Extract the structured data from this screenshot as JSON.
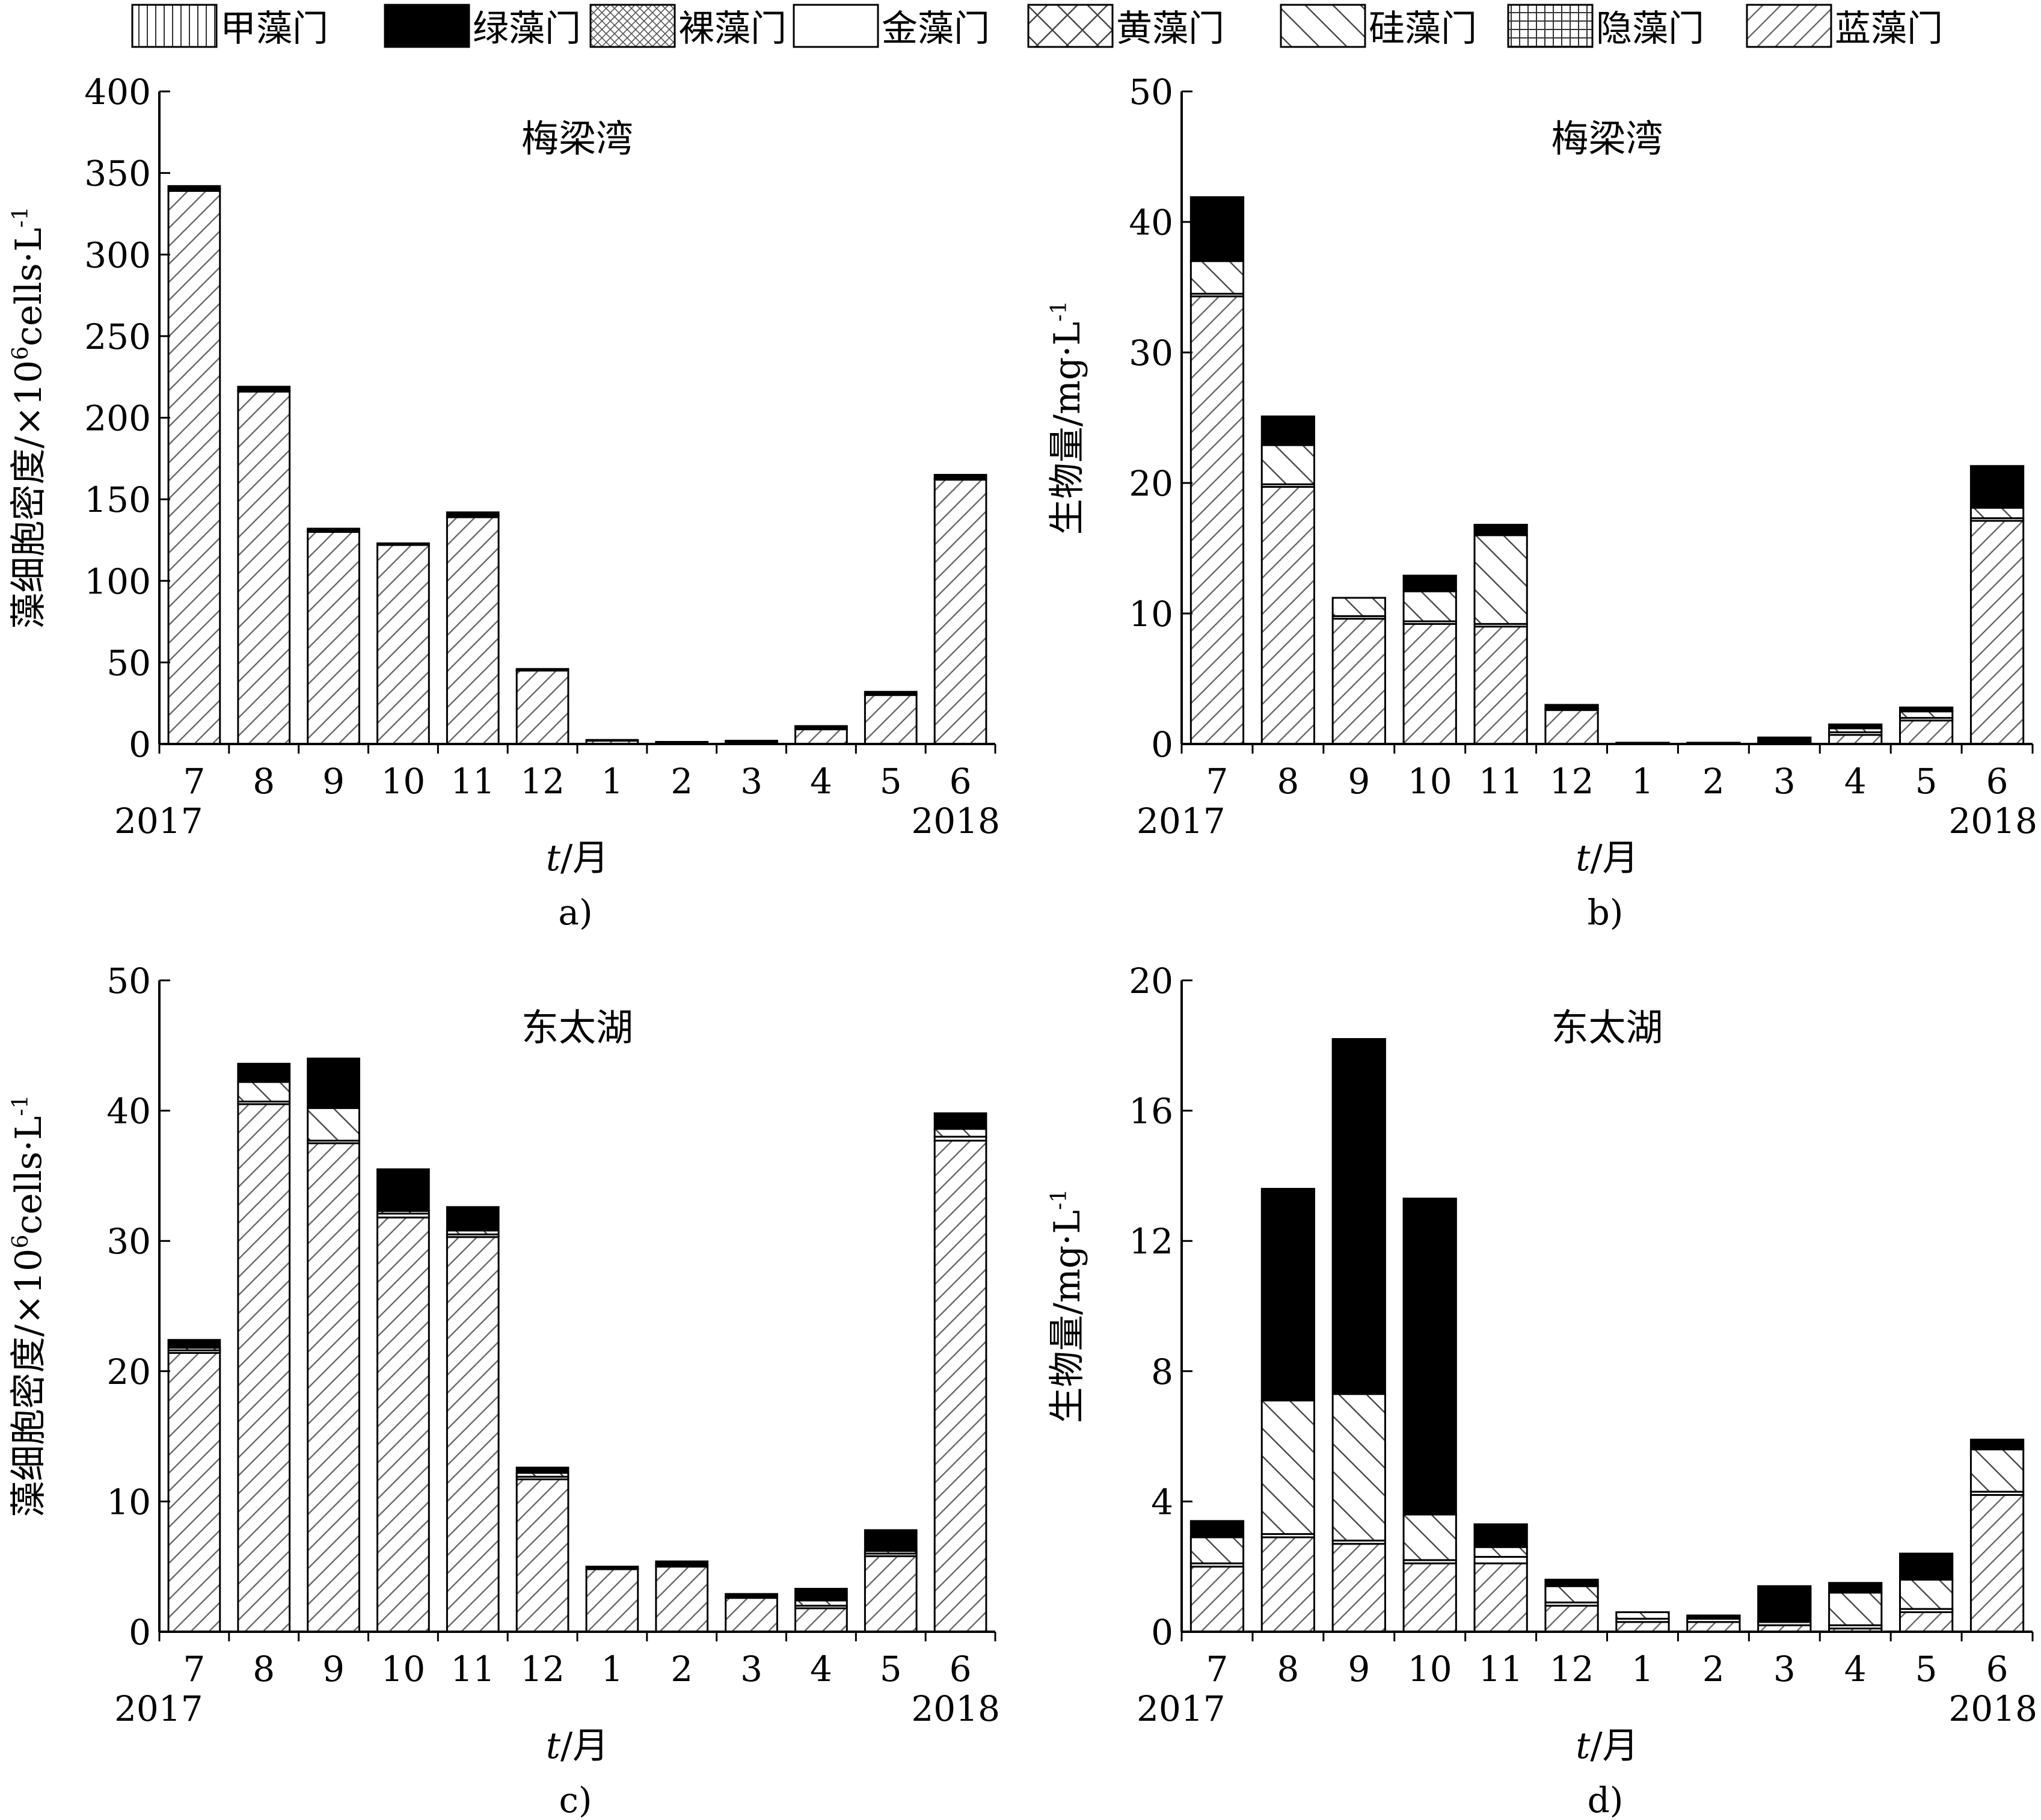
{
  "legend": [
    {
      "label": "甲藻门",
      "pattern": "vertical"
    },
    {
      "label": "绿藻门",
      "pattern": "solid"
    },
    {
      "label": "裸藻门",
      "pattern": "crosshatch"
    },
    {
      "label": "金藻门",
      "pattern": "blank"
    },
    {
      "label": "黄藻门",
      "pattern": "bigx"
    },
    {
      "label": "硅藻门",
      "pattern": "backslash"
    },
    {
      "label": "隐藻门",
      "pattern": "grid"
    },
    {
      "label": "蓝藻门",
      "pattern": "forwardslash"
    }
  ],
  "chart_data": [
    {
      "type": "bar",
      "stacked": true,
      "panel_label": "a)",
      "title": "梅梁湾",
      "ylabel_main": "藻细胞密度/×10",
      "ylabel_sup1": "6",
      "ylabel_mid": "cells·L",
      "ylabel_sup2": "-1",
      "xlabel_main": "t",
      "xlabel_unit": "/月",
      "categories": [
        "7",
        "8",
        "9",
        "10",
        "11",
        "12",
        "1",
        "2",
        "3",
        "4",
        "5",
        "6"
      ],
      "year_start": "2017",
      "year_end": "2018",
      "ylim": [
        0,
        400
      ],
      "yticks": [
        0,
        50,
        100,
        150,
        200,
        250,
        300,
        350,
        400
      ],
      "series": [
        {
          "name": "蓝藻门",
          "values": [
            339,
            216,
            130,
            122,
            139,
            45,
            2,
            1,
            1,
            9,
            30,
            162
          ]
        },
        {
          "name": "硅藻门",
          "values": [
            0,
            0,
            0,
            0,
            0,
            0,
            0,
            0,
            0,
            0,
            0,
            0
          ]
        },
        {
          "name": "金藻门",
          "values": [
            1,
            1,
            1,
            1,
            1,
            1,
            0.5,
            0.3,
            0.5,
            1,
            1,
            1
          ]
        },
        {
          "name": "绿藻门",
          "values": [
            2,
            2,
            1,
            0,
            2,
            0,
            0,
            0,
            0.5,
            1,
            1,
            2
          ]
        }
      ]
    },
    {
      "type": "bar",
      "stacked": true,
      "panel_label": "b)",
      "title": "梅梁湾",
      "ylabel_main": "生物量/mg·L",
      "ylabel_sup2": "-1",
      "xlabel_main": "t",
      "xlabel_unit": "/月",
      "categories": [
        "7",
        "8",
        "9",
        "10",
        "11",
        "12",
        "1",
        "2",
        "3",
        "4",
        "5",
        "6"
      ],
      "year_start": "2017",
      "year_end": "2018",
      "ylim": [
        0,
        50
      ],
      "yticks": [
        0,
        10,
        20,
        30,
        40,
        50
      ],
      "series": [
        {
          "name": "蓝藻门",
          "values": [
            34.3,
            19.7,
            9.6,
            9.2,
            9.0,
            2.6,
            0,
            0,
            0.1,
            0.7,
            1.8,
            17.1
          ]
        },
        {
          "name": "金藻门",
          "values": [
            0.2,
            0.2,
            0.2,
            0.2,
            0.2,
            0.1,
            0,
            0,
            0,
            0.2,
            0.2,
            0.2
          ]
        },
        {
          "name": "硅藻门",
          "values": [
            2.5,
            3.0,
            1.4,
            2.3,
            6.8,
            0,
            0,
            0,
            0,
            0.3,
            0.5,
            0.8
          ]
        },
        {
          "name": "绿藻门",
          "values": [
            4.9,
            2.2,
            0,
            1.2,
            0.8,
            0.3,
            0.1,
            0.1,
            0.4,
            0.3,
            0.3,
            3.2
          ]
        }
      ]
    },
    {
      "type": "bar",
      "stacked": true,
      "panel_label": "c)",
      "title": "东太湖",
      "ylabel_main": "藻细胞密度/×10",
      "ylabel_sup1": "6",
      "ylabel_mid": "cells·L",
      "ylabel_sup2": "-1",
      "xlabel_main": "t",
      "xlabel_unit": "/月",
      "categories": [
        "7",
        "8",
        "9",
        "10",
        "11",
        "12",
        "1",
        "2",
        "3",
        "4",
        "5",
        "6"
      ],
      "year_start": "2017",
      "year_end": "2018",
      "ylim": [
        0,
        50
      ],
      "yticks": [
        0,
        10,
        20,
        30,
        40,
        50
      ],
      "series": [
        {
          "name": "蓝藻门",
          "values": [
            21.4,
            40.5,
            37.5,
            31.8,
            30.3,
            11.7,
            4.8,
            5.0,
            2.6,
            1.8,
            5.8,
            37.7
          ]
        },
        {
          "name": "金藻门",
          "values": [
            0.2,
            0.2,
            0.2,
            0.3,
            0.2,
            0.2,
            0.1,
            0.1,
            0.1,
            0.2,
            0.2,
            0.3
          ]
        },
        {
          "name": "硅藻门",
          "values": [
            0.2,
            1.5,
            2.5,
            0.2,
            0.3,
            0.3,
            0,
            0,
            0,
            0.4,
            0.2,
            0.6
          ]
        },
        {
          "name": "绿藻门",
          "values": [
            0.6,
            1.4,
            3.8,
            3.2,
            1.8,
            0.4,
            0.1,
            0.3,
            0.2,
            0.9,
            1.6,
            1.2
          ]
        }
      ]
    },
    {
      "type": "bar",
      "stacked": true,
      "panel_label": "d)",
      "title": "东太湖",
      "ylabel_main": "生物量/mg·L",
      "ylabel_sup2": "-1",
      "xlabel_main": "t",
      "xlabel_unit": "/月",
      "categories": [
        "7",
        "8",
        "9",
        "10",
        "11",
        "12",
        "1",
        "2",
        "3",
        "4",
        "5",
        "6"
      ],
      "year_start": "2017",
      "year_end": "2018",
      "ylim": [
        0,
        20
      ],
      "yticks": [
        0,
        4,
        8,
        12,
        16,
        20
      ],
      "series": [
        {
          "name": "蓝藻门",
          "values": [
            2.0,
            2.9,
            2.7,
            2.1,
            2.1,
            0.8,
            0.3,
            0.3,
            0.2,
            0.1,
            0.6,
            4.2
          ]
        },
        {
          "name": "金藻门",
          "values": [
            0.1,
            0.1,
            0.1,
            0.1,
            0.2,
            0.1,
            0.1,
            0.1,
            0.1,
            0.1,
            0.1,
            0.1
          ]
        },
        {
          "name": "硅藻门",
          "values": [
            0.8,
            4.1,
            4.5,
            1.4,
            0.3,
            0.5,
            0.2,
            0,
            0,
            1.0,
            0.9,
            1.3
          ]
        },
        {
          "name": "绿藻门",
          "values": [
            0.5,
            6.5,
            10.9,
            9.7,
            0.7,
            0.2,
            0,
            0.1,
            1.1,
            0.3,
            0.8,
            0.3
          ]
        }
      ]
    }
  ]
}
